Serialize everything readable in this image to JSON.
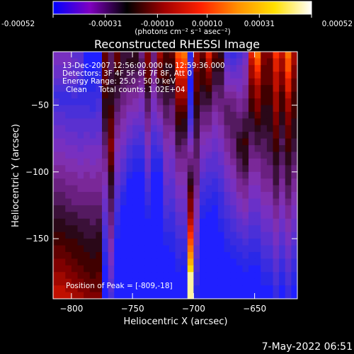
{
  "colors": {
    "background": "#000000",
    "foreground": "#ffffff"
  },
  "colorbar": {
    "ticks": [
      "-0.00052",
      "-0.00031",
      "-0.00010",
      "0.00010",
      "0.00031",
      "0.00052"
    ],
    "unit_label": "(photons cm⁻² s⁻¹ asec⁻²)",
    "range": [
      -0.00052,
      0.00052
    ],
    "colormap": [
      "#0000ff",
      "#8000c0",
      "#000000",
      "#a00000",
      "#ff2000",
      "#ff9000",
      "#ffe000",
      "#ffffff"
    ]
  },
  "chart_data": {
    "type": "heatmap",
    "title": "Reconstructed RHESSI Image",
    "xlabel": "Heliocentric X (arcsec)",
    "ylabel": "Heliocentric Y (arcsec)",
    "xlim": [
      -815,
      -615
    ],
    "ylim": [
      -195,
      -10
    ],
    "x_ticks": [
      -800,
      -750,
      -700,
      -650
    ],
    "y_ticks": [
      -50,
      -100,
      -150
    ],
    "x_tick_labels": [
      "−800",
      "−750",
      "−700",
      "−650"
    ],
    "y_tick_labels": [
      "−50",
      "−100",
      "−150"
    ],
    "grid": false,
    "annotations": [
      "13-Dec-2007 12:56:00.000 to 12:59:36.000",
      "Detectors: 3F 4F 5F 6F 7F 8F, Att 0",
      "Energy Range: 25.0 - 50.0 keV",
      "Clean     Total counts: 1.02E+04"
    ],
    "peak_label": "Position of Peak = [-809,-18]",
    "peak_position": [
      -809,
      -18
    ],
    "image_rows": [
      "GGGEEAAAOKOLLMJPJQNOUVBQOSOMDCDFSVPPTRVQ",
      "GGGFEAAAOKOLMMKPJPNNTUCQNRNNEDEGRUPOSQUQ",
      "FFFEEAABOKNLLLJOJOMMTTCPNQMMFEFHQTOOSQUP",
      "FFFFDBBBOLMLKKJOIONMSSBONPLLGFFHQSOORPTP",
      "EEEEDBBCOLMKKJINIMNMRRAONOLLGGGHPROORPSO",
      "DDDDCBBCNMLKJJHMHLMLQRAOMNKKHHGIOQNNROSO",
      "CCCDCCCCNMLJIIHLHKLLQQBNLMJKIIHIOQNNQNRN",
      "DCCCCCCDMMKJIHGKGJLKPPBNLLJJJJIJNPNNQNQN",
      "DDDDDDCDMNKIHHGKGIKJOOCMKKIJKJIJNPMMQNQN",
      "EEDDDDDEMNJIGGFJFHKJNNCMJJHIKKJKMOMMPMPN",
      "EEEEEEEELOJHGFFIFGJJNMDLJJHIKKKLLNMMPMPM",
      "FFEEEEEELOIHFEEIEFIIMMELIIGHJKKLLMLMOLOM",
      "FFFFEFEFKOIGFEDHDEIHLLFLHHGHJKLMKLLLOLOM",
      "GGFFFFFFKPHGEDDHDEHHLKGKHGFGIJMNKLKLNKNL",
      "GGGGFGGGJPHFDCCGCDHGKJHKGGFGIJMMJKKLNLNL",
      "HHGGGGGGJOGFDCCGCCGGJJIKGFEFHJLMJJKKMKMK",
      "HHHHGHGHIOGECBBFBBGFIIJJFEEFHIKMIIJKMKMK",
      "IIHHHHHHINGECBBFBBGFIIKJFEEEGHKLIIJJLJLJ",
      "IIIIHIHIHMFDBAAEAAFFHHLJEDDEGHJKHHJJLJLJ",
      "JJIIIIIIHMFDAAADAAFEHHMJDDCDFGIJHHIILILI",
      "JJJJIIIIGLECAAADAAEEGGNIDCCDFGIIGGIIKIKI",
      "KKJJJJJJGLEBAAACAAEEGGOICCBCEFHIGGHHKHKH",
      "KKKJJJJJFKDBAAACAAEDFFPHCBBCEFGHFFHHJHJH",
      "LLKKKKKKFKDAAAABAADDFFPHBBACDEGHFFGGIGIG",
      "LLLLKKKKEJCAAAABAADCEEQHBAACDEFGEEGGIGIG",
      "MMLLLLKLEJCAAAAAAACCEERGAAABCDEFEEFFHFHF",
      "MMMMLLLLDIBAAAAAAACCDDSGAAABCDEEDDFFHFHF",
      "NNMMMLLMDIBAAAAAAABBDDTFAAAACCDEDDEEGEGE",
      "NNNNMMMMCHAAAAAAAABBCCUFAAAABCCDCCEEGEGE",
      "OONNNMMMCHAAAAAAAAABCCVEAAAABBCCCCDDFDFD",
      "OOONNNMNBGAAAAAAAAAACBWEAAAAABBCBBDDFDFD",
      "PPOONNNNBGAAAAAAAAAABBXDAAAAAABBBBCCECEC",
      "PPPOONNNAFAAAAAAAAAABAYDAAAAAAABAACCECEC",
      "QQPPOONOAFAAAAAAAAAAAAZCAAAAAAAAAABBDBDB",
      "QQQPPOOOAEAAAAAAAAAAAAZCAAAAAAAAAABBDBDB",
      "RRQQPPOOAEAAAAAAAAAAAAZBAAAAAAAAAAAACACA",
      "RRRQQPPPADAAAAAAAAAAAAZBAAAAAAAAAAAACACA"
    ]
  },
  "footer": {
    "date": "7‑May‑2022 06:51"
  }
}
